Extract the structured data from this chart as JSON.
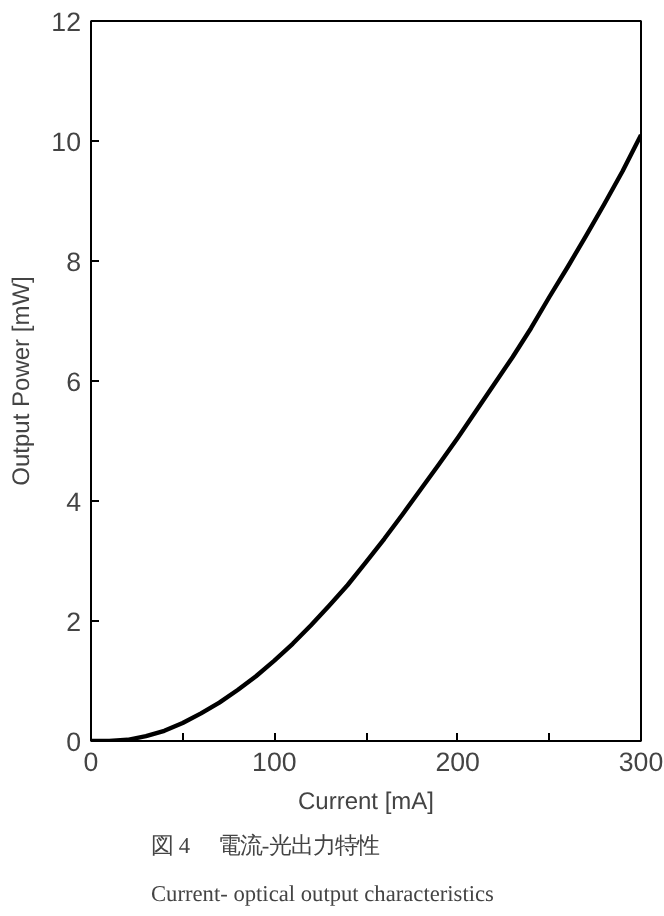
{
  "chart_data": {
    "type": "line",
    "xlabel": "Current [mA]",
    "ylabel": "Output Power [mW]",
    "annotations": [
      "図 4　 電流-光出力特性",
      "Current- optical output characteristics"
    ],
    "x": [
      0,
      10,
      20,
      30,
      40,
      50,
      60,
      70,
      80,
      90,
      100,
      110,
      120,
      130,
      140,
      150,
      160,
      170,
      180,
      190,
      200,
      210,
      220,
      230,
      240,
      250,
      260,
      270,
      280,
      290,
      300
    ],
    "series": [
      {
        "color": "#000000",
        "values": [
          0,
          0,
          0.02,
          0.08,
          0.17,
          0.3,
          0.46,
          0.64,
          0.85,
          1.08,
          1.34,
          1.62,
          1.93,
          2.26,
          2.6,
          2.98,
          3.37,
          3.78,
          4.2,
          4.62,
          5.05,
          5.5,
          5.95,
          6.4,
          6.88,
          7.4,
          7.9,
          8.42,
          8.95,
          9.5,
          10.1
        ]
      }
    ],
    "xlim": [
      0,
      300
    ],
    "ylim": [
      0,
      12
    ],
    "xticks": [
      0,
      {
        "value": 50,
        "label": null
      },
      100,
      {
        "value": 150,
        "label": null
      },
      200,
      {
        "value": 250,
        "label": null
      },
      300
    ],
    "yticks": [
      0,
      2,
      4,
      6,
      8,
      10,
      12
    ],
    "grid": false,
    "marker": "none",
    "line_style": "solid"
  }
}
